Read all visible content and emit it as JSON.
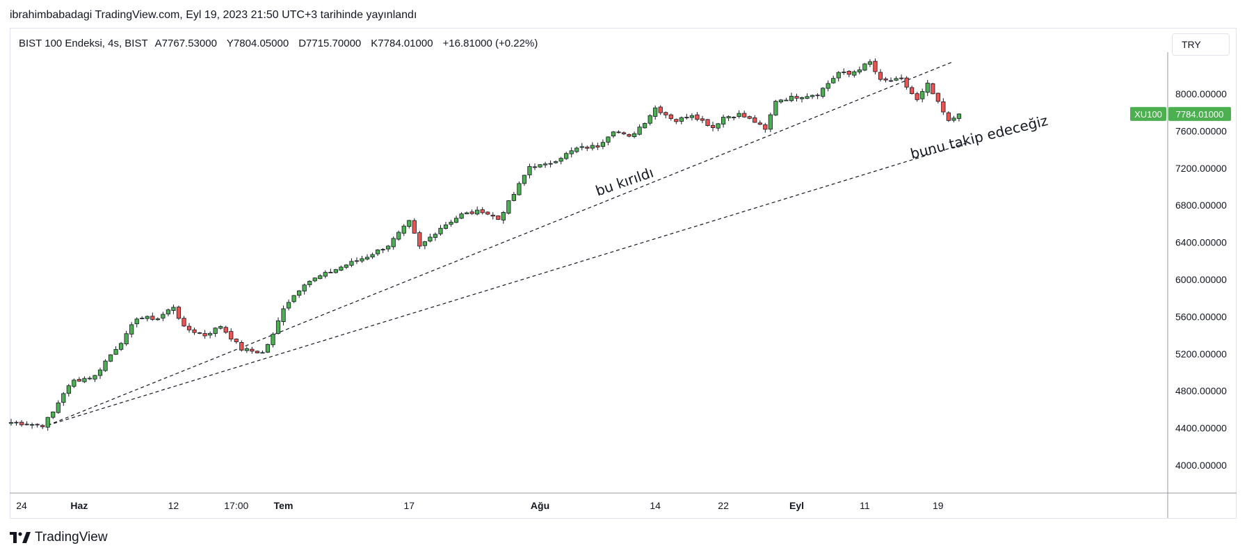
{
  "header": {
    "publish_line": "ibrahimbabadagi TradingView.com, Eyl 19, 2023 21:50 UTC+3 tarihinde yayınlandı"
  },
  "legend": {
    "symbol": "BIST 100 Endeksi, 4s, BIST",
    "open": "A7767.53000",
    "high": "Y7804.05000",
    "low": "D7715.70000",
    "close": "K7784.01000",
    "change": "+16.81000 (+0.22%)"
  },
  "currency_button": {
    "label": "TRY"
  },
  "watermark": {
    "label": "TradingView",
    "icon": "tradingview-logo-icon"
  },
  "colors": {
    "up": "#4caf50",
    "down": "#ef5350",
    "candle_border": "#131722",
    "badge": "#4caf50"
  },
  "price_badge": {
    "symbol": "XU100",
    "value": "7784.01000"
  },
  "chart_data": {
    "type": "candlestick",
    "ylim": [
      3700,
      8450
    ],
    "y_ticks": [
      "8000.00000",
      "7600.00000",
      "7200.00000",
      "6800.00000",
      "6400.00000",
      "6000.00000",
      "5600.00000",
      "5200.00000",
      "4800.00000",
      "4400.00000",
      "4000.00000"
    ],
    "y_tick_values": [
      8000,
      7600,
      7200,
      6800,
      6400,
      6000,
      5600,
      5200,
      4800,
      4400,
      4000
    ],
    "x_ticks": [
      "24",
      "Haz",
      "12",
      "17:00",
      "Tem",
      "17",
      "Ağu",
      "14",
      "22",
      "Eyl",
      "11",
      "19"
    ],
    "x_tick_bold": [
      false,
      true,
      false,
      false,
      true,
      false,
      true,
      false,
      false,
      true,
      false,
      false
    ],
    "x_tick_index": [
      2,
      13,
      31,
      43,
      52,
      76,
      101,
      123,
      136,
      150,
      163,
      177
    ],
    "close_path": [
      [
        0,
        4460
      ],
      [
        6,
        4430
      ],
      [
        8,
        4570
      ],
      [
        10,
        4780
      ],
      [
        12,
        4910
      ],
      [
        16,
        4960
      ],
      [
        18,
        5120
      ],
      [
        22,
        5400
      ],
      [
        24,
        5590
      ],
      [
        28,
        5580
      ],
      [
        31,
        5710
      ],
      [
        33,
        5480
      ],
      [
        37,
        5400
      ],
      [
        40,
        5500
      ],
      [
        44,
        5250
      ],
      [
        48,
        5210
      ],
      [
        50,
        5400
      ],
      [
        52,
        5700
      ],
      [
        56,
        5960
      ],
      [
        60,
        6060
      ],
      [
        64,
        6160
      ],
      [
        68,
        6250
      ],
      [
        72,
        6370
      ],
      [
        76,
        6620
      ],
      [
        78,
        6350
      ],
      [
        82,
        6560
      ],
      [
        86,
        6700
      ],
      [
        90,
        6740
      ],
      [
        93,
        6650
      ],
      [
        96,
        6920
      ],
      [
        99,
        7220
      ],
      [
        102,
        7230
      ],
      [
        105,
        7320
      ],
      [
        108,
        7410
      ],
      [
        112,
        7440
      ],
      [
        115,
        7610
      ],
      [
        118,
        7530
      ],
      [
        121,
        7700
      ],
      [
        123,
        7850
      ],
      [
        127,
        7710
      ],
      [
        130,
        7780
      ],
      [
        134,
        7640
      ],
      [
        136,
        7750
      ],
      [
        139,
        7780
      ],
      [
        142,
        7700
      ],
      [
        144,
        7610
      ],
      [
        146,
        7930
      ],
      [
        150,
        7970
      ],
      [
        154,
        8000
      ],
      [
        158,
        8230
      ],
      [
        160,
        8210
      ],
      [
        164,
        8340
      ],
      [
        166,
        8140
      ],
      [
        170,
        8150
      ],
      [
        173,
        7930
      ],
      [
        175,
        8100
      ],
      [
        179,
        7700
      ],
      [
        181,
        7784
      ]
    ],
    "trendlines": [
      {
        "from": [
          7,
          4430
        ],
        "to": [
          180,
          8350
        ]
      },
      {
        "from": [
          7,
          4430
        ],
        "to": [
          183,
          7480
        ]
      }
    ],
    "annotations": [
      {
        "text": "bu kırıldı",
        "at": [
          112,
          6900
        ],
        "angle": -19
      },
      {
        "text": "bunu takip edeceğiz",
        "at": [
          172,
          7300
        ],
        "angle": -14
      }
    ]
  }
}
